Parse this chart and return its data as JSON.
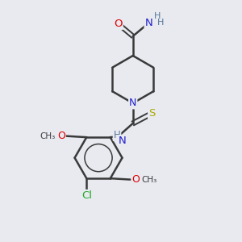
{
  "background_color": "#e8eaf0",
  "bond_color": "#3a3a3a",
  "atom_colors": {
    "O": "#dd0000",
    "N": "#2020cc",
    "S": "#aaaa00",
    "Cl": "#22aa22",
    "C": "#3a3a3a",
    "H": "#557799"
  },
  "figsize": [
    3.0,
    3.0
  ],
  "dpi": 100
}
